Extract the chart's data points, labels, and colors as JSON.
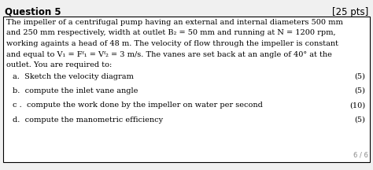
{
  "title_left": "Question 5",
  "title_right": "[25 pts]",
  "bg_color": "#f0f0f0",
  "box_bg_color": "#ffffff",
  "border_color": "#000000",
  "text_color": "#000000",
  "gray_color": "#888888",
  "page_note": "6 / 6",
  "title_fontsize": 8.5,
  "body_fontsize": 7.0,
  "item_fontsize": 7.0
}
